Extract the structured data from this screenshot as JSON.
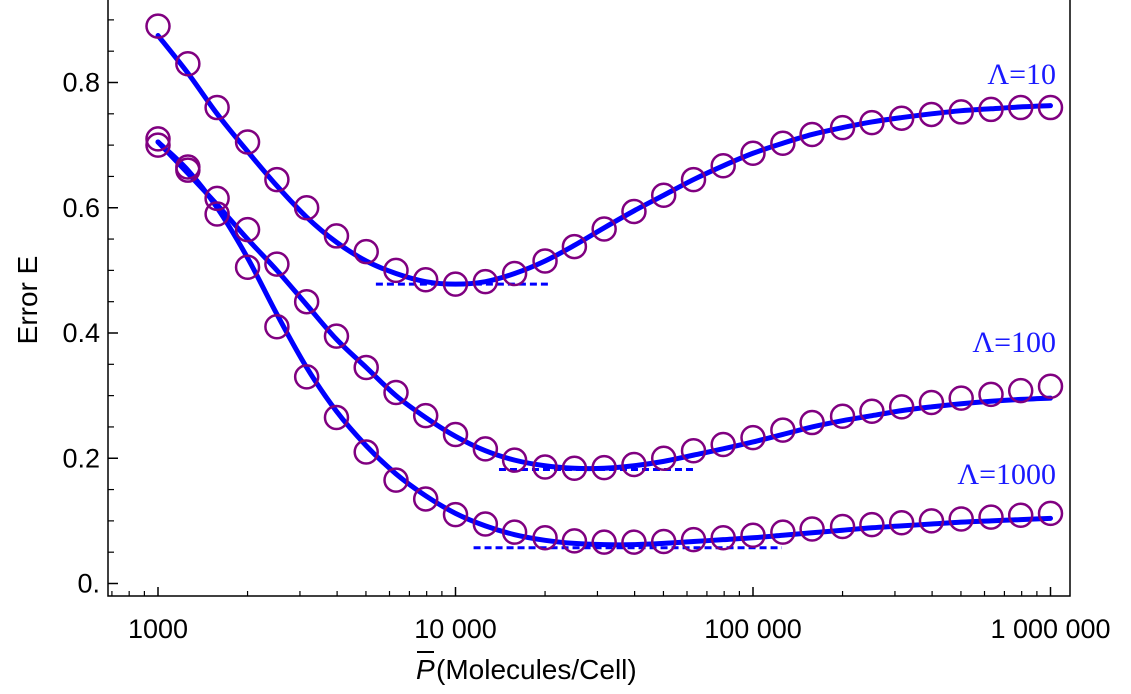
{
  "chart_data": {
    "type": "scatter",
    "title": "",
    "xlabel": "(Molecules/Cell)",
    "xlabel_symbol": "P",
    "ylabel": "Error E",
    "xscale": "log",
    "xlim": [
      700,
      1100000
    ],
    "ylim": [
      -0.02,
      0.95
    ],
    "xticks": [
      1000,
      10000,
      100000,
      1000000
    ],
    "xtick_labels": [
      "1000",
      "10 000",
      "100 000",
      "1 000 000"
    ],
    "yticks": [
      0,
      0.2,
      0.4,
      0.6,
      0.8
    ],
    "ytick_labels": [
      "0.",
      "0.2",
      "0.4",
      "0.6",
      "0.8"
    ],
    "grid": false,
    "colors": {
      "markers": "#800080",
      "fit": "#0000ff",
      "labels": "#1a1aff"
    },
    "series": [
      {
        "name": "Λ=10",
        "x": [
          1000,
          1260,
          1580,
          2000,
          2510,
          3160,
          3980,
          5010,
          6310,
          7940,
          10000,
          12600,
          15800,
          20000,
          25100,
          31600,
          39800,
          50100,
          63100,
          79400,
          100000,
          126000,
          158000,
          200000,
          251000,
          316000,
          398000,
          501000,
          631000,
          794000,
          1000000
        ],
        "y": [
          0.89,
          0.83,
          0.76,
          0.705,
          0.645,
          0.6,
          0.555,
          0.53,
          0.5,
          0.485,
          0.478,
          0.482,
          0.495,
          0.515,
          0.538,
          0.566,
          0.594,
          0.62,
          0.645,
          0.667,
          0.687,
          0.703,
          0.717,
          0.728,
          0.736,
          0.743,
          0.749,
          0.753,
          0.757,
          0.76,
          0.76
        ],
        "fit": [
          [
            1000,
            0.875
          ],
          [
            1260,
            0.815
          ],
          [
            1580,
            0.75
          ],
          [
            2000,
            0.69
          ],
          [
            2510,
            0.635
          ],
          [
            3160,
            0.585
          ],
          [
            3980,
            0.545
          ],
          [
            5010,
            0.515
          ],
          [
            6310,
            0.495
          ],
          [
            7940,
            0.482
          ],
          [
            10000,
            0.478
          ],
          [
            12600,
            0.482
          ],
          [
            15800,
            0.495
          ],
          [
            20000,
            0.515
          ],
          [
            25100,
            0.54
          ],
          [
            31600,
            0.568
          ],
          [
            39800,
            0.595
          ],
          [
            50100,
            0.62
          ],
          [
            63100,
            0.645
          ],
          [
            79400,
            0.667
          ],
          [
            100000,
            0.687
          ],
          [
            126000,
            0.703
          ],
          [
            158000,
            0.717
          ],
          [
            200000,
            0.728
          ],
          [
            251000,
            0.737
          ],
          [
            316000,
            0.744
          ],
          [
            398000,
            0.75
          ],
          [
            501000,
            0.755
          ],
          [
            631000,
            0.758
          ],
          [
            794000,
            0.761
          ],
          [
            1000000,
            0.763
          ]
        ],
        "minimum": {
          "y": 0.478,
          "x_from": 5400,
          "x_to": 21000
        }
      },
      {
        "name": "Λ=100",
        "x": [
          1000,
          1260,
          1580,
          2000,
          2510,
          3160,
          3980,
          5010,
          6310,
          7940,
          10000,
          12600,
          15800,
          20000,
          25100,
          31600,
          39800,
          50100,
          63100,
          79400,
          100000,
          126000,
          158000,
          200000,
          251000,
          316000,
          398000,
          501000,
          631000,
          794000,
          1000000
        ],
        "y": [
          0.71,
          0.665,
          0.615,
          0.565,
          0.51,
          0.45,
          0.395,
          0.345,
          0.305,
          0.268,
          0.238,
          0.215,
          0.197,
          0.186,
          0.184,
          0.185,
          0.19,
          0.2,
          0.212,
          0.222,
          0.233,
          0.245,
          0.257,
          0.267,
          0.275,
          0.282,
          0.289,
          0.296,
          0.302,
          0.308,
          0.315
        ],
        "fit": [
          [
            1000,
            0.705
          ],
          [
            1260,
            0.655
          ],
          [
            1580,
            0.605
          ],
          [
            2000,
            0.55
          ],
          [
            2510,
            0.5
          ],
          [
            3160,
            0.445
          ],
          [
            3980,
            0.39
          ],
          [
            5010,
            0.345
          ],
          [
            6310,
            0.3
          ],
          [
            7940,
            0.265
          ],
          [
            10000,
            0.235
          ],
          [
            12600,
            0.212
          ],
          [
            15800,
            0.197
          ],
          [
            20000,
            0.188
          ],
          [
            25100,
            0.184
          ],
          [
            31600,
            0.184
          ],
          [
            39800,
            0.188
          ],
          [
            50100,
            0.195
          ],
          [
            63100,
            0.205
          ],
          [
            79400,
            0.215
          ],
          [
            100000,
            0.226
          ],
          [
            126000,
            0.238
          ],
          [
            158000,
            0.25
          ],
          [
            200000,
            0.26
          ],
          [
            251000,
            0.268
          ],
          [
            316000,
            0.276
          ],
          [
            398000,
            0.282
          ],
          [
            501000,
            0.287
          ],
          [
            631000,
            0.291
          ],
          [
            794000,
            0.294
          ],
          [
            1000000,
            0.296
          ]
        ],
        "minimum": {
          "y": 0.182,
          "x_from": 14000,
          "x_to": 64000
        }
      },
      {
        "name": "Λ=1000",
        "x": [
          1000,
          1260,
          1580,
          2000,
          2510,
          3160,
          3980,
          5010,
          6310,
          7940,
          10000,
          12600,
          15800,
          20000,
          25100,
          31600,
          39800,
          50100,
          63100,
          79400,
          100000,
          126000,
          158000,
          200000,
          251000,
          316000,
          398000,
          501000,
          631000,
          794000,
          1000000
        ],
        "y": [
          0.7,
          0.66,
          0.59,
          0.505,
          0.41,
          0.33,
          0.265,
          0.21,
          0.165,
          0.135,
          0.11,
          0.095,
          0.082,
          0.073,
          0.068,
          0.066,
          0.066,
          0.067,
          0.07,
          0.073,
          0.077,
          0.082,
          0.087,
          0.091,
          0.094,
          0.097,
          0.1,
          0.103,
          0.106,
          0.109,
          0.112
        ],
        "fit": [
          [
            1000,
            0.705
          ],
          [
            1260,
            0.66
          ],
          [
            1580,
            0.6
          ],
          [
            2000,
            0.52
          ],
          [
            2510,
            0.43
          ],
          [
            3160,
            0.345
          ],
          [
            3980,
            0.275
          ],
          [
            5010,
            0.22
          ],
          [
            6310,
            0.175
          ],
          [
            7940,
            0.14
          ],
          [
            10000,
            0.112
          ],
          [
            12600,
            0.092
          ],
          [
            15800,
            0.078
          ],
          [
            20000,
            0.069
          ],
          [
            25100,
            0.064
          ],
          [
            31600,
            0.062
          ],
          [
            39800,
            0.062
          ],
          [
            50100,
            0.064
          ],
          [
            63100,
            0.067
          ],
          [
            79400,
            0.07
          ],
          [
            100000,
            0.073
          ],
          [
            126000,
            0.077
          ],
          [
            158000,
            0.081
          ],
          [
            200000,
            0.085
          ],
          [
            251000,
            0.089
          ],
          [
            316000,
            0.092
          ],
          [
            398000,
            0.095
          ],
          [
            501000,
            0.098
          ],
          [
            631000,
            0.1
          ],
          [
            794000,
            0.102
          ],
          [
            1000000,
            0.104
          ]
        ],
        "minimum": {
          "y": 0.057,
          "x_from": 11500,
          "x_to": 125000
        }
      }
    ]
  }
}
